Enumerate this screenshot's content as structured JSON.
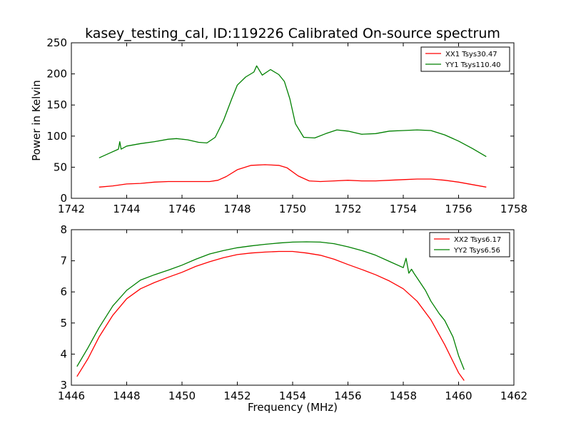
{
  "figure": {
    "title": "kasey_testing_cal, ID:119226 Calibrated On-source spectrum"
  },
  "chart_data": [
    {
      "type": "line",
      "title": "kasey_testing_cal, ID:119226 Calibrated On-source spectrum",
      "xlabel": "",
      "ylabel": "Power in Kelvin",
      "xlim": [
        1742,
        1758
      ],
      "ylim": [
        0,
        250
      ],
      "xticks": [
        "1742",
        "1744",
        "1746",
        "1748",
        "1750",
        "1752",
        "1754",
        "1756",
        "1758"
      ],
      "yticks": [
        "0",
        "50",
        "100",
        "150",
        "200",
        "250"
      ],
      "grid": false,
      "legend_position": "top-right",
      "series": [
        {
          "name": "XX1 Tsys30.47",
          "color": "#ff0000",
          "x": [
            1743.0,
            1743.5,
            1744.0,
            1744.5,
            1745.0,
            1745.5,
            1746.0,
            1746.5,
            1747.0,
            1747.3,
            1747.6,
            1748.0,
            1748.5,
            1749.0,
            1749.5,
            1749.8,
            1750.2,
            1750.6,
            1751.0,
            1751.5,
            1752.0,
            1752.5,
            1753.0,
            1753.5,
            1754.0,
            1754.5,
            1755.0,
            1755.5,
            1756.0,
            1756.5,
            1757.0
          ],
          "values": [
            18,
            20,
            23,
            24,
            26,
            27,
            27,
            27,
            27,
            29,
            35,
            46,
            53,
            54,
            53,
            49,
            36,
            28,
            27,
            28,
            29,
            28,
            28,
            29,
            30,
            31,
            31,
            29,
            26,
            22,
            18
          ]
        },
        {
          "name": "YY1 Tsys110.40",
          "color": "#008000",
          "x": [
            1743.0,
            1743.4,
            1743.7,
            1743.75,
            1743.8,
            1744.0,
            1744.5,
            1745.0,
            1745.5,
            1745.8,
            1746.2,
            1746.6,
            1746.9,
            1747.2,
            1747.5,
            1747.8,
            1748.0,
            1748.3,
            1748.6,
            1748.7,
            1748.9,
            1749.2,
            1749.5,
            1749.7,
            1749.9,
            1750.1,
            1750.4,
            1750.8,
            1751.2,
            1751.6,
            1752.0,
            1752.5,
            1753.0,
            1753.5,
            1754.0,
            1754.5,
            1755.0,
            1755.5,
            1756.0,
            1756.5,
            1757.0
          ],
          "values": [
            65,
            73,
            79,
            91,
            79,
            84,
            88,
            91,
            95,
            96,
            94,
            90,
            89,
            98,
            125,
            160,
            182,
            195,
            203,
            213,
            198,
            207,
            199,
            188,
            160,
            120,
            98,
            97,
            104,
            110,
            108,
            103,
            104,
            108,
            109,
            110,
            109,
            102,
            92,
            80,
            67
          ]
        }
      ]
    },
    {
      "type": "line",
      "title": "",
      "xlabel": "Frequency (MHz)",
      "ylabel": "",
      "xlim": [
        1446,
        1462
      ],
      "ylim": [
        3,
        8
      ],
      "xticks": [
        "1446",
        "1448",
        "1450",
        "1452",
        "1454",
        "1456",
        "1458",
        "1460",
        "1462"
      ],
      "yticks": [
        "3",
        "4",
        "5",
        "6",
        "7",
        "8"
      ],
      "grid": false,
      "legend_position": "top-right",
      "series": [
        {
          "name": "XX2 Tsys6.17",
          "color": "#ff0000",
          "x": [
            1446.2,
            1446.6,
            1447.0,
            1447.5,
            1448.0,
            1448.5,
            1449.0,
            1449.5,
            1450.0,
            1450.5,
            1451.0,
            1451.5,
            1452.0,
            1452.5,
            1453.0,
            1453.5,
            1454.0,
            1454.5,
            1455.0,
            1455.5,
            1456.0,
            1456.5,
            1457.0,
            1457.5,
            1458.0,
            1458.5,
            1459.0,
            1459.5,
            1460.0,
            1460.2
          ],
          "values": [
            3.28,
            3.85,
            4.55,
            5.25,
            5.78,
            6.1,
            6.3,
            6.47,
            6.63,
            6.82,
            6.97,
            7.1,
            7.2,
            7.25,
            7.28,
            7.3,
            7.3,
            7.25,
            7.18,
            7.05,
            6.88,
            6.72,
            6.55,
            6.35,
            6.1,
            5.7,
            5.1,
            4.3,
            3.4,
            3.15
          ]
        },
        {
          "name": "YY2 Tsys6.56",
          "color": "#008000",
          "x": [
            1446.2,
            1446.6,
            1447.0,
            1447.5,
            1448.0,
            1448.5,
            1449.0,
            1449.5,
            1450.0,
            1450.5,
            1451.0,
            1451.5,
            1452.0,
            1452.5,
            1453.0,
            1453.5,
            1454.0,
            1454.5,
            1455.0,
            1455.5,
            1456.0,
            1456.5,
            1457.0,
            1457.5,
            1458.0,
            1458.1,
            1458.2,
            1458.3,
            1458.4,
            1458.5,
            1458.8,
            1459.0,
            1459.3,
            1459.5,
            1459.8,
            1460.0,
            1460.2
          ],
          "values": [
            3.6,
            4.2,
            4.85,
            5.55,
            6.05,
            6.38,
            6.55,
            6.7,
            6.86,
            7.05,
            7.22,
            7.33,
            7.42,
            7.48,
            7.53,
            7.57,
            7.6,
            7.61,
            7.6,
            7.55,
            7.45,
            7.33,
            7.18,
            6.98,
            6.78,
            7.08,
            6.6,
            6.73,
            6.58,
            6.45,
            6.05,
            5.7,
            5.3,
            5.08,
            4.55,
            3.95,
            3.5
          ]
        }
      ]
    }
  ]
}
